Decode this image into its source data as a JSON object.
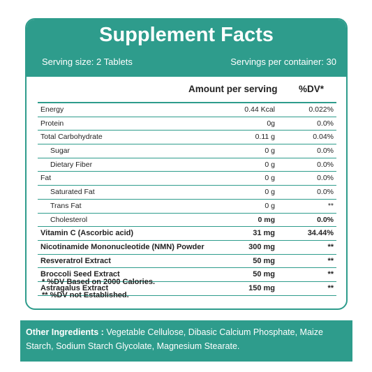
{
  "title": "Supplement Facts",
  "serving_size": "Serving size: 2 Tablets",
  "servings_per_container": "Servings per container: 30",
  "col_amount": "Amount per serving",
  "col_dv": "%DV*",
  "rows": [
    {
      "name": "Energy",
      "amount": "0.44 Kcal",
      "dv": "0.022%"
    },
    {
      "name": "Protein",
      "amount": "0g",
      "dv": "0.0%"
    },
    {
      "name": "Total Carbohydrate",
      "amount": "0.11 g",
      "dv": "0.04%"
    },
    {
      "name": "Sugar",
      "amount": "0 g",
      "dv": "0.0%"
    },
    {
      "name": "Dietary Fiber",
      "amount": "0 g",
      "dv": "0.0%"
    },
    {
      "name": "Fat",
      "amount": "0 g",
      "dv": "0.0%"
    },
    {
      "name": "Saturated Fat",
      "amount": "0 g",
      "dv": "0.0%"
    },
    {
      "name": "Trans Fat",
      "amount": "0 g",
      "dv": "**"
    },
    {
      "name": "Cholesterol",
      "amount": "0 mg",
      "dv": "0.0%"
    },
    {
      "name": "Vitamin C (Ascorbic acid)",
      "amount": "31 mg",
      "dv": "34.44%"
    },
    {
      "name": "Nicotinamide Mononucleotide (NMN) Powder",
      "amount": "300 mg",
      "dv": "**"
    },
    {
      "name": "Resveratrol Extract",
      "amount": "50 mg",
      "dv": "**"
    },
    {
      "name": "Broccoli Seed Extract",
      "amount": "50 mg",
      "dv": "**"
    },
    {
      "name": "Astragalus Extract",
      "amount": "150 mg",
      "dv": "**"
    }
  ],
  "footnote_1": "* %DV Based on 2000 Calories.",
  "footnote_2": "** %DV not Established.",
  "other_label": "Other Ingredients :",
  "other_text": "Vegetable Cellulose, Dibasic Calcium Phosphate, Maize Starch, Sodium Starch Glycolate, Magnesium Stearate.",
  "accent_color": "#2e9c8c"
}
